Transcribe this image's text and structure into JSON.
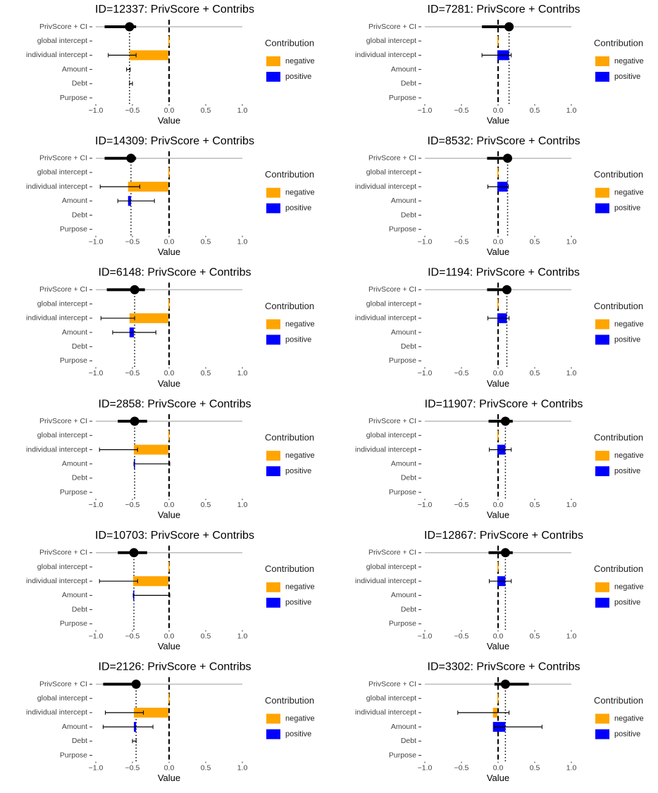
{
  "chart_data": [
    {
      "type": "contrib",
      "title": "ID=12337: PrivScore + Contribs",
      "score": -0.54,
      "categories": [
        "PrivScore + CI",
        "global intercept",
        "individual intercept",
        "Amount",
        "Debt",
        "Purpose"
      ],
      "series": [
        {
          "name": "negative",
          "color": "#FFA500",
          "values": [
            null,
            -0.01,
            -0.53,
            null,
            null,
            null
          ]
        },
        {
          "name": "positive",
          "color": "#0000FF",
          "values": [
            null,
            null,
            null,
            null,
            null,
            null
          ]
        }
      ],
      "error_low": [
        -0.88,
        null,
        -0.83,
        -0.58,
        -0.54,
        null
      ],
      "error_high": [
        -0.45,
        null,
        -0.45,
        -0.53,
        -0.5,
        null
      ],
      "xlim": [
        -1,
        1
      ],
      "xticks": [
        {
          "value": -1,
          "label": "−1.0"
        },
        {
          "value": -0.5,
          "label": "−0.5"
        },
        {
          "value": 0,
          "label": "0.0"
        },
        0.5,
        {
          "value": 1,
          "label": "1.0"
        }
      ],
      "xlabel": "Value",
      "legend_title": "Contribution"
    },
    {
      "type": "contrib",
      "title": "ID=7281: PrivScore + Contribs",
      "score": 0.15,
      "categories": [
        "PrivScore + CI",
        "global intercept",
        "individual intercept",
        "Amount",
        "Debt",
        "Purpose"
      ],
      "series": [
        {
          "name": "negative",
          "color": "#FFA500",
          "values": [
            null,
            -0.01,
            null,
            null,
            null,
            null
          ]
        },
        {
          "name": "positive",
          "color": "#0000FF",
          "values": [
            null,
            null,
            0.16,
            null,
            null,
            null
          ]
        }
      ],
      "error_low": [
        -0.22,
        null,
        -0.22,
        null,
        null,
        null
      ],
      "error_high": [
        0.15,
        null,
        0.18,
        null,
        null,
        null
      ],
      "xlim": [
        -1,
        1
      ],
      "xticks": [
        {
          "value": -1,
          "label": "−1.0"
        },
        {
          "value": -0.5,
          "label": "−0.5"
        },
        {
          "value": 0,
          "label": "0.0"
        },
        0.5,
        {
          "value": 1,
          "label": "1.0"
        }
      ],
      "xlabel": "Value",
      "legend_title": "Contribution"
    },
    {
      "type": "contrib",
      "title": "ID=14309: PrivScore + Contribs",
      "score": -0.52,
      "categories": [
        "PrivScore + CI",
        "global intercept",
        "individual intercept",
        "Amount",
        "Debt",
        "Purpose"
      ],
      "series": [
        {
          "name": "negative",
          "color": "#FFA500",
          "values": [
            null,
            -0.01,
            -0.55,
            null,
            null,
            null
          ]
        },
        {
          "name": "positive",
          "color": "#0000FF",
          "values": [
            null,
            null,
            null,
            0.04,
            null,
            null
          ]
        }
      ],
      "error_low": [
        -0.88,
        null,
        -0.94,
        -0.7,
        null,
        null
      ],
      "error_high": [
        -0.45,
        null,
        -0.4,
        -0.2,
        null,
        null
      ],
      "xlim": [
        -1,
        1
      ],
      "xticks": [
        {
          "value": -1,
          "label": "−1.0"
        },
        {
          "value": -0.5,
          "label": "−0.5"
        },
        {
          "value": 0,
          "label": "0.0"
        },
        0.5,
        {
          "value": 1,
          "label": "1.0"
        }
      ],
      "xlabel": "Value",
      "legend_title": "Contribution"
    },
    {
      "type": "contrib",
      "title": "ID=8532: PrivScore + Contribs",
      "score": 0.13,
      "categories": [
        "PrivScore + CI",
        "global intercept",
        "individual intercept",
        "Amount",
        "Debt",
        "Purpose"
      ],
      "series": [
        {
          "name": "negative",
          "color": "#FFA500",
          "values": [
            null,
            -0.01,
            null,
            null,
            null,
            null
          ]
        },
        {
          "name": "positive",
          "color": "#0000FF",
          "values": [
            null,
            null,
            0.14,
            null,
            null,
            null
          ]
        }
      ],
      "error_low": [
        -0.15,
        null,
        -0.14,
        null,
        null,
        null
      ],
      "error_high": [
        0.13,
        null,
        0.14,
        null,
        null,
        null
      ],
      "xlim": [
        -1,
        1
      ],
      "xticks": [
        {
          "value": -1,
          "label": "−1.0"
        },
        {
          "value": -0.5,
          "label": "−0.5"
        },
        {
          "value": 0,
          "label": "0.0"
        },
        0.5,
        {
          "value": 1,
          "label": "1.0"
        }
      ],
      "xlabel": "Value",
      "legend_title": "Contribution"
    },
    {
      "type": "contrib",
      "title": "ID=6148: PrivScore + Contribs",
      "score": -0.47,
      "categories": [
        "PrivScore + CI",
        "global intercept",
        "individual intercept",
        "Amount",
        "Debt",
        "Purpose"
      ],
      "series": [
        {
          "name": "negative",
          "color": "#FFA500",
          "values": [
            null,
            -0.01,
            -0.53,
            null,
            null,
            null
          ]
        },
        {
          "name": "positive",
          "color": "#0000FF",
          "values": [
            null,
            null,
            null,
            0.06,
            null,
            null
          ]
        }
      ],
      "error_low": [
        -0.85,
        null,
        -0.93,
        -0.77,
        null,
        null
      ],
      "error_high": [
        -0.33,
        null,
        -0.47,
        -0.18,
        null,
        null
      ],
      "xlim": [
        -1,
        1
      ],
      "xticks": [
        {
          "value": -1,
          "label": "−1.0"
        },
        {
          "value": -0.5,
          "label": "−0.5"
        },
        {
          "value": 0,
          "label": "0.0"
        },
        0.5,
        {
          "value": 1,
          "label": "1.0"
        }
      ],
      "xlabel": "Value",
      "legend_title": "Contribution"
    },
    {
      "type": "contrib",
      "title": "ID=1194: PrivScore + Contribs",
      "score": 0.12,
      "categories": [
        "PrivScore + CI",
        "global intercept",
        "individual intercept",
        "Amount",
        "Debt",
        "Purpose"
      ],
      "series": [
        {
          "name": "negative",
          "color": "#FFA500",
          "values": [
            null,
            -0.01,
            null,
            null,
            null,
            null
          ]
        },
        {
          "name": "positive",
          "color": "#0000FF",
          "values": [
            null,
            null,
            0.13,
            null,
            null,
            null
          ]
        }
      ],
      "error_low": [
        -0.15,
        null,
        -0.14,
        null,
        null,
        null
      ],
      "error_high": [
        0.12,
        null,
        0.15,
        null,
        null,
        null
      ],
      "xlim": [
        -1,
        1
      ],
      "xticks": [
        {
          "value": -1,
          "label": "−1.0"
        },
        {
          "value": -0.5,
          "label": "−0.5"
        },
        {
          "value": 0,
          "label": "0.0"
        },
        0.5,
        {
          "value": 1,
          "label": "1.0"
        }
      ],
      "xlabel": "Value",
      "legend_title": "Contribution"
    },
    {
      "type": "contrib",
      "title": "ID=2858: PrivScore + Contribs",
      "score": -0.47,
      "categories": [
        "PrivScore + CI",
        "global intercept",
        "individual intercept",
        "Amount",
        "Debt",
        "Purpose"
      ],
      "series": [
        {
          "name": "negative",
          "color": "#FFA500",
          "values": [
            null,
            -0.01,
            -0.47,
            null,
            null,
            null
          ]
        },
        {
          "name": "positive",
          "color": "#0000FF",
          "values": [
            null,
            null,
            null,
            0.01,
            null,
            null
          ]
        }
      ],
      "error_low": [
        -0.7,
        null,
        -0.95,
        -0.48,
        null,
        null
      ],
      "error_high": [
        -0.3,
        null,
        -0.43,
        0.01,
        null,
        null
      ],
      "xlim": [
        -1,
        1
      ],
      "xticks": [
        {
          "value": -1,
          "label": "−1.0"
        },
        {
          "value": -0.5,
          "label": "−0.5"
        },
        {
          "value": 0,
          "label": "0.0"
        },
        0.5,
        {
          "value": 1,
          "label": "1.0"
        }
      ],
      "xlabel": "Value",
      "legend_title": "Contribution"
    },
    {
      "type": "contrib",
      "title": "ID=11907: PrivScore + Contribs",
      "score": 0.1,
      "categories": [
        "PrivScore + CI",
        "global intercept",
        "individual intercept",
        "Amount",
        "Debt",
        "Purpose"
      ],
      "series": [
        {
          "name": "negative",
          "color": "#FFA500",
          "values": [
            null,
            -0.01,
            null,
            null,
            null,
            null
          ]
        },
        {
          "name": "positive",
          "color": "#0000FF",
          "values": [
            null,
            null,
            0.11,
            null,
            null,
            null
          ]
        }
      ],
      "error_low": [
        -0.13,
        null,
        -0.12,
        null,
        null,
        null
      ],
      "error_high": [
        0.2,
        null,
        0.18,
        null,
        null,
        null
      ],
      "xlim": [
        -1,
        1
      ],
      "xticks": [
        {
          "value": -1,
          "label": "−1.0"
        },
        {
          "value": -0.5,
          "label": "−0.5"
        },
        {
          "value": 0,
          "label": "0.0"
        },
        0.5,
        {
          "value": 1,
          "label": "1.0"
        }
      ],
      "xlabel": "Value",
      "legend_title": "Contribution"
    },
    {
      "type": "contrib",
      "title": "ID=10703: PrivScore + Contribs",
      "score": -0.48,
      "categories": [
        "PrivScore + CI",
        "global intercept",
        "individual intercept",
        "Amount",
        "Debt",
        "Purpose"
      ],
      "series": [
        {
          "name": "negative",
          "color": "#FFA500",
          "values": [
            null,
            -0.01,
            -0.48,
            null,
            null,
            null
          ]
        },
        {
          "name": "positive",
          "color": "#0000FF",
          "values": [
            null,
            null,
            null,
            0.01,
            null,
            null
          ]
        }
      ],
      "error_low": [
        -0.7,
        null,
        -0.95,
        -0.49,
        null,
        null
      ],
      "error_high": [
        -0.3,
        null,
        -0.43,
        0.01,
        null,
        null
      ],
      "xlim": [
        -1,
        1
      ],
      "xticks": [
        {
          "value": -1,
          "label": "−1.0"
        },
        {
          "value": -0.5,
          "label": "−0.5"
        },
        {
          "value": 0,
          "label": "0.0"
        },
        0.5,
        {
          "value": 1,
          "label": "1.0"
        }
      ],
      "xlabel": "Value",
      "legend_title": "Contribution"
    },
    {
      "type": "contrib",
      "title": "ID=12867: PrivScore + Contribs",
      "score": 0.1,
      "categories": [
        "PrivScore + CI",
        "global intercept",
        "individual intercept",
        "Amount",
        "Debt",
        "Purpose"
      ],
      "series": [
        {
          "name": "negative",
          "color": "#FFA500",
          "values": [
            null,
            -0.01,
            null,
            null,
            null,
            null
          ]
        },
        {
          "name": "positive",
          "color": "#0000FF",
          "values": [
            null,
            null,
            0.11,
            null,
            null,
            null
          ]
        }
      ],
      "error_low": [
        -0.13,
        null,
        -0.12,
        null,
        null,
        null
      ],
      "error_high": [
        0.2,
        null,
        0.18,
        null,
        null,
        null
      ],
      "xlim": [
        -1,
        1
      ],
      "xticks": [
        {
          "value": -1,
          "label": "−1.0"
        },
        {
          "value": -0.5,
          "label": "−0.5"
        },
        {
          "value": 0,
          "label": "0.0"
        },
        0.5,
        {
          "value": 1,
          "label": "1.0"
        }
      ],
      "xlabel": "Value",
      "legend_title": "Contribution"
    },
    {
      "type": "contrib",
      "title": "ID=2126: PrivScore + Contribs",
      "score": -0.45,
      "categories": [
        "PrivScore + CI",
        "global intercept",
        "individual intercept",
        "Amount",
        "Debt",
        "Purpose"
      ],
      "series": [
        {
          "name": "negative",
          "color": "#FFA500",
          "values": [
            null,
            -0.01,
            -0.47,
            null,
            null,
            null
          ]
        },
        {
          "name": "positive",
          "color": "#0000FF",
          "values": [
            null,
            null,
            null,
            0.03,
            null,
            null
          ]
        }
      ],
      "error_low": [
        -0.9,
        null,
        -0.87,
        -0.9,
        -0.5,
        null
      ],
      "error_high": [
        -0.44,
        null,
        -0.35,
        -0.22,
        -0.45,
        null
      ],
      "xlim": [
        -1,
        1
      ],
      "xticks": [
        {
          "value": -1,
          "label": "−1.0"
        },
        {
          "value": -0.5,
          "label": "−0.5"
        },
        {
          "value": 0,
          "label": "0.0"
        },
        0.5,
        {
          "value": 1,
          "label": "1.0"
        }
      ],
      "xlabel": "Value",
      "legend_title": "Contribution"
    },
    {
      "type": "contrib",
      "title": "ID=3302: PrivScore + Contribs",
      "score": 0.1,
      "categories": [
        "PrivScore + CI",
        "global intercept",
        "individual intercept",
        "Amount",
        "Debt",
        "Purpose"
      ],
      "series": [
        {
          "name": "negative",
          "color": "#FFA500",
          "values": [
            null,
            -0.01,
            -0.06,
            null,
            null,
            null
          ]
        },
        {
          "name": "positive",
          "color": "#0000FF",
          "values": [
            null,
            null,
            null,
            0.17,
            null,
            null
          ]
        }
      ],
      "error_low": [
        -0.05,
        null,
        -0.55,
        -0.05,
        null,
        null
      ],
      "error_high": [
        0.42,
        null,
        0.15,
        0.6,
        null,
        null
      ],
      "xlim": [
        -1,
        1
      ],
      "xticks": [
        {
          "value": -1,
          "label": "−1.0"
        },
        {
          "value": -0.5,
          "label": "−0.5"
        },
        {
          "value": 0,
          "label": "0.0"
        },
        0.5,
        {
          "value": 1,
          "label": "1.0"
        }
      ],
      "xlabel": "Value",
      "legend_title": "Contribution"
    }
  ]
}
